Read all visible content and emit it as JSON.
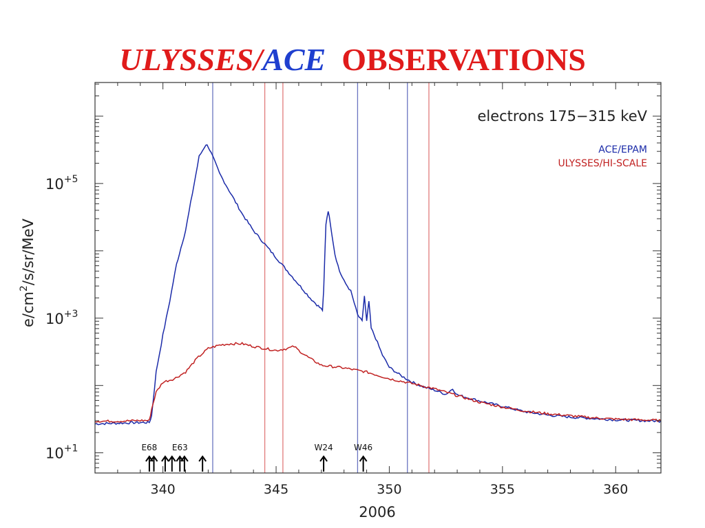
{
  "title": {
    "part1": "ULYSSES/",
    "part1_color": "#e01b1b",
    "part2": "ACE",
    "part2_color": "#1f3fcf",
    "part3": "OBSERVATIONS",
    "part3_color": "#e01b1b"
  },
  "chart_data": {
    "type": "line",
    "title": "",
    "panel_label": "electrons 175−315 keV",
    "xlabel": "2006",
    "ylabel": "e/cm",
    "ylabel_sup": "2",
    "ylabel_rest": "/s/sr/MeV",
    "xlim": [
      337,
      362
    ],
    "ylim_log10": [
      0.7,
      6.5
    ],
    "yscale": "log",
    "xticks": [
      340,
      345,
      350,
      355,
      360
    ],
    "xtick_labels": [
      "340",
      "345",
      "350",
      "355",
      "360"
    ],
    "yticks_log10": [
      1,
      3,
      5
    ],
    "ytick_labels": [
      {
        "base": "10",
        "exp": "+1"
      },
      {
        "base": "10",
        "exp": "+3"
      },
      {
        "base": "10",
        "exp": "+5"
      }
    ],
    "legend_placement": "top-right",
    "series": [
      {
        "name": "ACE/EPAM",
        "color": "#1a2aa8",
        "x": [
          337,
          338,
          339,
          339.4,
          339.5,
          339.7,
          340,
          340.3,
          340.6,
          341,
          341.3,
          341.6,
          341.9,
          342.0,
          342.2,
          342.5,
          343,
          343.5,
          344,
          344.5,
          345,
          345.5,
          346,
          346.5,
          346.8,
          347.05,
          347.1,
          347.2,
          347.3,
          347.4,
          347.6,
          347.8,
          348,
          348.3,
          348.6,
          348.8,
          348.9,
          349.0,
          349.1,
          349.2,
          349.4,
          349.7,
          350,
          350.5,
          351,
          351.5,
          352,
          352.5,
          352.8,
          353,
          354,
          355,
          356,
          357,
          358,
          359,
          360,
          361,
          362
        ],
        "log10_y": [
          1.43,
          1.44,
          1.45,
          1.45,
          1.55,
          2.2,
          2.75,
          3.25,
          3.8,
          4.3,
          4.85,
          5.4,
          5.58,
          5.55,
          5.4,
          5.15,
          4.85,
          4.55,
          4.3,
          4.1,
          3.9,
          3.7,
          3.5,
          3.3,
          3.2,
          3.12,
          3.4,
          4.4,
          4.6,
          4.4,
          3.95,
          3.7,
          3.55,
          3.4,
          3.05,
          2.95,
          3.33,
          2.95,
          3.25,
          2.85,
          2.7,
          2.45,
          2.27,
          2.15,
          2.05,
          1.98,
          1.93,
          1.87,
          1.95,
          1.86,
          1.77,
          1.69,
          1.61,
          1.56,
          1.53,
          1.51,
          1.49,
          1.48,
          1.47
        ]
      },
      {
        "name": "ULYSSES/HI-SCALE",
        "color": "#c02020",
        "x": [
          337,
          338,
          339,
          339.4,
          339.5,
          339.7,
          340,
          340.5,
          341,
          341.5,
          342,
          342.5,
          343,
          343.5,
          344,
          344.5,
          345,
          345.5,
          345.8,
          346,
          346.5,
          347,
          348,
          349,
          350,
          351,
          352,
          353,
          354,
          355,
          356,
          357,
          358,
          359,
          360,
          361,
          362
        ],
        "log10_y": [
          1.47,
          1.47,
          1.48,
          1.48,
          1.65,
          1.9,
          2.05,
          2.1,
          2.2,
          2.4,
          2.55,
          2.6,
          2.62,
          2.62,
          2.58,
          2.55,
          2.52,
          2.55,
          2.58,
          2.52,
          2.4,
          2.3,
          2.26,
          2.2,
          2.1,
          2.03,
          1.95,
          1.85,
          1.75,
          1.68,
          1.62,
          1.58,
          1.55,
          1.52,
          1.5,
          1.49,
          1.48
        ]
      }
    ],
    "vertical_lines": [
      {
        "x": 342.2,
        "color": "#6a74c0"
      },
      {
        "x": 344.5,
        "color": "#e07a7a"
      },
      {
        "x": 345.3,
        "color": "#e07a7a"
      },
      {
        "x": 348.6,
        "color": "#6a74c0"
      },
      {
        "x": 350.8,
        "color": "#6a74c0"
      },
      {
        "x": 351.75,
        "color": "#e07a7a"
      }
    ],
    "event_markers": [
      {
        "x": 339.4,
        "label": "E68"
      },
      {
        "x": 339.6,
        "label": ""
      },
      {
        "x": 340.1,
        "label": ""
      },
      {
        "x": 340.4,
        "label": ""
      },
      {
        "x": 340.75,
        "label": "E63"
      },
      {
        "x": 340.95,
        "label": ""
      },
      {
        "x": 341.75,
        "label": ""
      },
      {
        "x": 347.1,
        "label": "W24"
      },
      {
        "x": 348.85,
        "label": "W46"
      }
    ]
  }
}
